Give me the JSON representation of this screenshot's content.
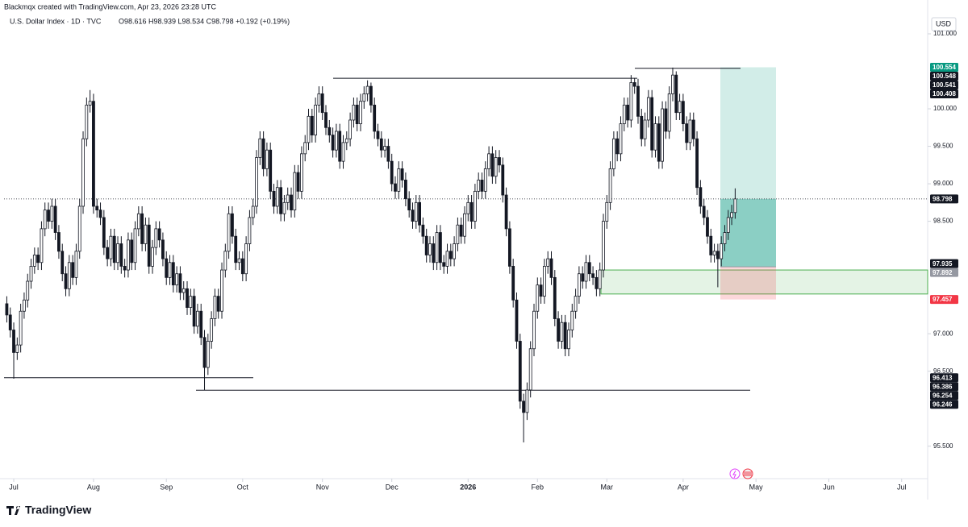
{
  "header": {
    "credit": "Blackmqx created with TradingView.com, Apr 23, 2026 23:28 UTC",
    "symbol": "U.S. Dollar Index · 1D · TVC",
    "ohlc": "O98.616 H98.939 L98.534 C98.798 +0.192 (+0.19%)",
    "currency": "USD",
    "brand": "TradingView"
  },
  "chart_data": {
    "type": "candlestick",
    "up_color": "#ffffff",
    "down_color": "#131722",
    "x": [
      -2,
      -1,
      0,
      1,
      2,
      3,
      4,
      5,
      6,
      7,
      8,
      9,
      10,
      11,
      12,
      13,
      14,
      15,
      16,
      17,
      18,
      19,
      20,
      21,
      22,
      23,
      24,
      25,
      26,
      27,
      28,
      29,
      30,
      31,
      32,
      33,
      34,
      35,
      36,
      37,
      38,
      39,
      40,
      41,
      42,
      43,
      44,
      45,
      46,
      47,
      48,
      49,
      50,
      51,
      52,
      53,
      54,
      55,
      56,
      57,
      58,
      59,
      60,
      61,
      62,
      63,
      64,
      65,
      66,
      67,
      68,
      69,
      70,
      71,
      72,
      73,
      74,
      75,
      76,
      77,
      78,
      79,
      80,
      81,
      82,
      83,
      84,
      85,
      86,
      87,
      88,
      89,
      90,
      91,
      92,
      93,
      94,
      95,
      96,
      97,
      98,
      99,
      100,
      101,
      102,
      103,
      104,
      105,
      106,
      107,
      108,
      109,
      110,
      111,
      112,
      113,
      114,
      115,
      116,
      117,
      118,
      119,
      120,
      121,
      122,
      123,
      124,
      125,
      126,
      127,
      128,
      129,
      130,
      131,
      132,
      133,
      134,
      135,
      136,
      137,
      138,
      139,
      140,
      141,
      142,
      143,
      144,
      145,
      146,
      147,
      148,
      149,
      150,
      151,
      152,
      153,
      154,
      155,
      156,
      157,
      158,
      159,
      160,
      161,
      162,
      163,
      164,
      165,
      166,
      167,
      168,
      169,
      170,
      171,
      172,
      173,
      174,
      175,
      176,
      177,
      178,
      179,
      180,
      181,
      182,
      183,
      184,
      185,
      186,
      187,
      188,
      189,
      190,
      191,
      192,
      193,
      194,
      195,
      196,
      197,
      198,
      199,
      200,
      201,
      202,
      203,
      204,
      205,
      206,
      207,
      208
    ],
    "open": [
      97.4,
      97.25,
      97.05,
      96.75,
      96.85,
      97.3,
      97.45,
      97.7,
      97.9,
      98.05,
      97.95,
      98.4,
      98.65,
      98.5,
      98.7,
      98.35,
      98.1,
      97.8,
      97.6,
      97.95,
      97.75,
      98.1,
      98.7,
      99.6,
      100.05,
      100.1,
      98.7,
      98.65,
      98.55,
      98.15,
      98.0,
      98.3,
      97.95,
      98.2,
      97.9,
      97.85,
      98.25,
      97.95,
      98.4,
      98.6,
      98.2,
      98.45,
      97.9,
      98.15,
      98.4,
      98.25,
      98.0,
      97.75,
      97.95,
      97.65,
      97.8,
      97.55,
      97.6,
      97.35,
      97.5,
      97.1,
      97.3,
      96.95,
      96.55,
      96.9,
      97.2,
      97.5,
      97.3,
      97.85,
      98.1,
      98.6,
      98.3,
      97.95,
      98.0,
      97.8,
      98.2,
      98.55,
      98.7,
      99.35,
      99.6,
      99.2,
      99.45,
      98.9,
      98.7,
      98.95,
      98.6,
      98.75,
      98.85,
      98.65,
      99.15,
      98.9,
      99.4,
      99.55,
      99.9,
      99.65,
      100.05,
      100.2,
      99.95,
      99.75,
      99.65,
      99.45,
      99.7,
      99.3,
      99.55,
      99.6,
      99.85,
      100.05,
      99.8,
      100.1,
      100.2,
      100.3,
      100.05,
      99.7,
      99.6,
      99.45,
      99.5,
      99.3,
      99.0,
      98.9,
      99.2,
      99.05,
      98.8,
      98.65,
      98.5,
      98.75,
      98.45,
      98.3,
      98.05,
      98.2,
      97.95,
      98.35,
      97.95,
      97.9,
      98.1,
      98.0,
      98.2,
      98.45,
      98.3,
      98.6,
      98.75,
      98.5,
      98.9,
      99.05,
      98.9,
      99.2,
      99.4,
      99.1,
      99.35,
      99.25,
      98.85,
      98.4,
      97.9,
      97.45,
      96.9,
      96.1,
      95.95,
      96.25,
      96.8,
      97.3,
      97.65,
      97.5,
      97.9,
      98.0,
      97.75,
      97.2,
      96.9,
      97.15,
      96.8,
      97.05,
      97.3,
      97.5,
      97.8,
      97.7,
      97.95,
      97.8,
      97.75,
      97.6,
      97.85,
      98.5,
      98.75,
      99.2,
      99.6,
      99.4,
      99.8,
      100.05,
      99.85,
      100.35,
      100.3,
      99.9,
      99.6,
      99.85,
      100.15,
      99.45,
      99.8,
      99.3,
      100.0,
      99.7,
      100.2,
      100.45,
      99.95,
      100.1,
      99.8,
      99.55,
      99.85,
      99.6,
      98.95,
      98.7,
      98.55,
      98.3,
      98.05,
      98.1,
      98.0,
      98.2,
      98.35,
      98.55,
      98.616
    ],
    "high": [
      97.5,
      97.35,
      97.15,
      96.95,
      97.4,
      97.55,
      97.8,
      98.0,
      98.15,
      98.15,
      98.5,
      98.75,
      98.75,
      98.8,
      98.8,
      98.45,
      98.2,
      97.9,
      98.05,
      98.05,
      98.2,
      98.8,
      99.7,
      100.15,
      100.25,
      100.2,
      98.8,
      98.75,
      98.65,
      98.25,
      98.4,
      98.4,
      98.3,
      98.3,
      98.0,
      98.35,
      98.35,
      98.5,
      98.7,
      98.7,
      98.55,
      98.55,
      98.25,
      98.5,
      98.5,
      98.35,
      98.1,
      98.05,
      98.05,
      97.9,
      97.9,
      97.7,
      97.7,
      97.6,
      97.6,
      97.4,
      97.4,
      97.05,
      97.0,
      97.3,
      97.6,
      97.6,
      97.95,
      98.2,
      98.7,
      98.7,
      98.4,
      98.1,
      98.1,
      98.3,
      98.65,
      98.8,
      99.45,
      99.7,
      99.7,
      99.55,
      99.55,
      99.0,
      99.05,
      99.05,
      98.85,
      98.95,
      98.95,
      99.25,
      99.25,
      99.5,
      99.65,
      100.0,
      100.0,
      100.15,
      100.3,
      100.3,
      100.05,
      99.85,
      99.75,
      99.8,
      99.8,
      99.65,
      99.7,
      99.95,
      100.15,
      100.15,
      100.2,
      100.3,
      100.38,
      100.35,
      100.15,
      99.8,
      99.7,
      99.6,
      99.6,
      99.4,
      99.1,
      99.3,
      99.3,
      99.15,
      98.9,
      98.75,
      98.85,
      98.85,
      98.55,
      98.4,
      98.3,
      98.3,
      98.45,
      98.45,
      98.05,
      98.2,
      98.2,
      98.3,
      98.55,
      98.55,
      98.7,
      98.85,
      98.85,
      99.0,
      99.15,
      99.15,
      99.3,
      99.5,
      99.5,
      99.45,
      99.45,
      99.35,
      98.95,
      98.5,
      98.0,
      97.55,
      97.0,
      96.2,
      96.35,
      96.9,
      97.4,
      97.75,
      97.75,
      98.0,
      98.1,
      98.1,
      97.85,
      97.3,
      97.25,
      97.25,
      97.15,
      97.4,
      97.6,
      97.9,
      97.9,
      98.05,
      98.05,
      97.9,
      97.85,
      97.95,
      98.6,
      98.85,
      99.3,
      99.7,
      99.7,
      99.9,
      100.15,
      100.15,
      100.45,
      100.41,
      100.4,
      100.0,
      99.95,
      100.25,
      100.25,
      99.9,
      99.9,
      100.1,
      100.1,
      100.3,
      100.55,
      100.5,
      100.2,
      100.2,
      99.9,
      99.95,
      99.95,
      99.7,
      99.05,
      98.8,
      98.65,
      98.4,
      98.2,
      98.2,
      98.3,
      98.45,
      98.65,
      98.72,
      98.939
    ],
    "low": [
      97.15,
      96.95,
      96.4,
      96.65,
      96.75,
      97.2,
      97.35,
      97.6,
      97.8,
      97.85,
      97.85,
      98.3,
      98.4,
      98.4,
      98.25,
      98.0,
      97.7,
      97.5,
      97.5,
      97.65,
      97.65,
      98.0,
      98.6,
      99.5,
      99.95,
      98.6,
      98.55,
      98.45,
      98.05,
      97.9,
      97.9,
      97.85,
      97.85,
      97.8,
      97.75,
      97.75,
      97.85,
      97.85,
      98.3,
      98.1,
      98.1,
      97.8,
      97.8,
      98.05,
      98.15,
      97.9,
      97.65,
      97.65,
      97.55,
      97.55,
      97.45,
      97.45,
      97.25,
      97.25,
      97.0,
      97.0,
      96.85,
      96.25,
      96.45,
      96.8,
      97.1,
      97.2,
      97.2,
      97.75,
      98.0,
      98.2,
      97.85,
      97.85,
      97.7,
      97.7,
      98.1,
      98.45,
      98.6,
      99.25,
      99.1,
      99.1,
      98.8,
      98.6,
      98.6,
      98.5,
      98.5,
      98.65,
      98.55,
      98.55,
      98.8,
      98.8,
      99.3,
      99.45,
      99.55,
      99.55,
      99.95,
      99.85,
      99.65,
      99.55,
      99.35,
      99.35,
      99.2,
      99.2,
      99.45,
      99.5,
      99.75,
      99.7,
      99.7,
      100.0,
      100.1,
      99.95,
      99.6,
      99.5,
      99.35,
      99.35,
      99.2,
      98.9,
      98.8,
      98.8,
      98.95,
      98.7,
      98.55,
      98.4,
      98.4,
      98.35,
      98.2,
      97.95,
      97.95,
      97.85,
      97.85,
      97.85,
      97.8,
      97.8,
      97.9,
      97.9,
      98.1,
      98.2,
      98.2,
      98.5,
      98.4,
      98.4,
      98.8,
      98.8,
      98.8,
      99.1,
      99.0,
      99.0,
      99.15,
      98.75,
      98.3,
      97.8,
      97.35,
      96.8,
      96.0,
      95.55,
      95.85,
      96.15,
      96.7,
      97.2,
      97.4,
      97.4,
      97.8,
      97.65,
      97.1,
      96.8,
      96.8,
      96.7,
      96.7,
      96.95,
      97.2,
      97.4,
      97.6,
      97.6,
      97.7,
      97.65,
      97.5,
      97.5,
      97.75,
      98.4,
      98.65,
      99.1,
      99.3,
      99.3,
      99.7,
      99.75,
      99.75,
      100.2,
      99.8,
      99.5,
      99.5,
      99.75,
      99.35,
      99.35,
      99.2,
      99.2,
      99.6,
      99.6,
      100.1,
      99.85,
      99.85,
      99.7,
      99.45,
      99.45,
      99.5,
      98.85,
      98.6,
      98.45,
      98.2,
      97.95,
      97.95,
      97.62,
      97.9,
      98.1,
      98.25,
      98.45,
      98.534
    ],
    "close": [
      97.25,
      97.05,
      96.75,
      96.85,
      97.3,
      97.45,
      97.7,
      97.9,
      98.05,
      97.95,
      98.4,
      98.65,
      98.5,
      98.7,
      98.35,
      98.1,
      97.8,
      97.6,
      97.95,
      97.75,
      98.1,
      98.7,
      99.6,
      100.05,
      100.1,
      98.7,
      98.65,
      98.55,
      98.15,
      98.0,
      98.3,
      97.95,
      98.2,
      97.9,
      97.85,
      98.25,
      97.95,
      98.4,
      98.6,
      98.2,
      98.45,
      97.9,
      98.15,
      98.4,
      98.25,
      98.0,
      97.75,
      97.95,
      97.65,
      97.8,
      97.55,
      97.6,
      97.35,
      97.5,
      97.1,
      97.3,
      96.95,
      96.55,
      96.9,
      97.2,
      97.5,
      97.3,
      97.85,
      98.1,
      98.6,
      98.3,
      97.95,
      98.0,
      97.8,
      98.2,
      98.55,
      98.7,
      99.35,
      99.6,
      99.2,
      99.45,
      98.9,
      98.7,
      98.95,
      98.6,
      98.75,
      98.85,
      98.65,
      99.15,
      98.9,
      99.4,
      99.55,
      99.9,
      99.65,
      100.05,
      100.2,
      99.95,
      99.75,
      99.65,
      99.45,
      99.7,
      99.3,
      99.55,
      99.6,
      99.85,
      100.05,
      99.8,
      100.1,
      100.2,
      100.3,
      100.05,
      99.7,
      99.6,
      99.45,
      99.5,
      99.3,
      99.0,
      98.9,
      99.2,
      99.05,
      98.8,
      98.65,
      98.5,
      98.75,
      98.45,
      98.3,
      98.05,
      98.2,
      97.95,
      98.35,
      97.95,
      97.9,
      98.1,
      98.0,
      98.2,
      98.45,
      98.3,
      98.6,
      98.75,
      98.5,
      98.9,
      99.05,
      98.9,
      99.2,
      99.4,
      99.1,
      99.35,
      99.25,
      98.85,
      98.4,
      97.9,
      97.45,
      96.9,
      96.1,
      95.95,
      96.25,
      96.8,
      97.3,
      97.65,
      97.5,
      97.9,
      98.0,
      97.75,
      97.2,
      96.9,
      97.15,
      96.8,
      97.05,
      97.3,
      97.5,
      97.8,
      97.7,
      97.95,
      97.8,
      97.75,
      97.6,
      97.85,
      98.5,
      98.75,
      99.2,
      99.6,
      99.4,
      99.8,
      100.05,
      99.85,
      100.35,
      100.3,
      99.9,
      99.6,
      99.85,
      100.15,
      99.45,
      99.8,
      99.3,
      100.0,
      99.7,
      100.2,
      100.45,
      99.95,
      100.1,
      99.8,
      99.55,
      99.85,
      99.6,
      98.95,
      98.7,
      98.55,
      98.3,
      98.05,
      98.1,
      98.0,
      98.2,
      98.35,
      98.55,
      98.616,
      98.798
    ],
    "xlim": [
      -2.8,
      263.5
    ],
    "xticks": [
      {
        "value": 0,
        "label": "Jul"
      },
      {
        "value": 23,
        "label": "Aug"
      },
      {
        "value": 44,
        "label": "Sep"
      },
      {
        "value": 66,
        "label": "Oct"
      },
      {
        "value": 89,
        "label": "Nov"
      },
      {
        "value": 109,
        "label": "Dec"
      },
      {
        "value": 131,
        "label": "2026"
      },
      {
        "value": 151,
        "label": "Feb"
      },
      {
        "value": 171,
        "label": "Mar"
      },
      {
        "value": 193,
        "label": "Apr"
      },
      {
        "value": 214,
        "label": "May"
      },
      {
        "value": 235,
        "label": "Jun"
      },
      {
        "value": 256,
        "label": "Jul"
      }
    ],
    "ylim": [
      95.11,
      101.29
    ],
    "yticks": [
      {
        "value": 101,
        "label": "101.000"
      },
      {
        "value": 100,
        "label": "100.000"
      },
      {
        "value": 99.5,
        "label": "99.500"
      },
      {
        "value": 99,
        "label": "99.000"
      },
      {
        "value": 98.5,
        "label": "98.500"
      },
      {
        "value": 97,
        "label": "97.000"
      },
      {
        "value": 96.5,
        "label": "96.500"
      },
      {
        "value": 95.5,
        "label": "95.500"
      }
    ],
    "levels": [
      96.413,
      96.246,
      100.408,
      100.541
    ],
    "last_price": 98.798,
    "zone": [
      97.53,
      97.85
    ],
    "position": {
      "target": 100.554,
      "entry": 97.892,
      "stop": 97.457
    },
    "axis_labels": [
      {
        "value": 100.554,
        "color": "#089981"
      },
      {
        "value": 100.548,
        "color": "#131722"
      },
      {
        "value": 100.541,
        "color": "#131722"
      },
      {
        "value": 100.408,
        "color": "#131722"
      },
      {
        "value": 98.798,
        "color": "#131722"
      },
      {
        "value": 97.935,
        "color": "#131722"
      },
      {
        "value": 97.892,
        "color": "#9598a1"
      },
      {
        "value": 97.457,
        "color": "#f23645"
      },
      {
        "value": 96.413,
        "color": "#131722"
      },
      {
        "value": 96.386,
        "color": "#131722"
      },
      {
        "value": 96.254,
        "color": "#131722"
      },
      {
        "value": 96.246,
        "color": "#131722"
      }
    ]
  }
}
